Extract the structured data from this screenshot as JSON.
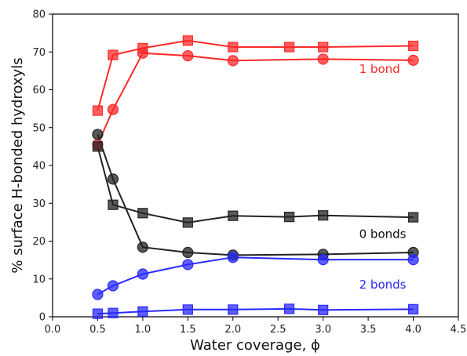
{
  "chart_data": {
    "type": "line",
    "xlabel": "Water coverage, ϕ",
    "ylabel": "% surface H-bonded hydroxyls",
    "xlim": [
      0,
      4.5
    ],
    "ylim": [
      0,
      80
    ],
    "xticks": [
      "0.0",
      "0.5",
      "1.0",
      "1.5",
      "2.0",
      "2.5",
      "3.0",
      "3.5",
      "4.0",
      "4.5"
    ],
    "yticks": [
      "0",
      "10",
      "20",
      "30",
      "40",
      "50",
      "60",
      "70",
      "80"
    ],
    "grid": false,
    "series": [
      {
        "group": "1 bond",
        "marker": "square",
        "color": "#ff2a2a",
        "points": [
          [
            0.5,
            54.5
          ],
          [
            0.67,
            69.2
          ],
          [
            1.0,
            71.0
          ],
          [
            1.5,
            73.0
          ],
          [
            2.0,
            71.3
          ],
          [
            2.625,
            71.3
          ],
          [
            3.0,
            71.3
          ],
          [
            4.0,
            71.6
          ]
        ]
      },
      {
        "group": "1 bond",
        "marker": "circle",
        "color": "#ff2a2a",
        "points": [
          [
            0.5,
            45.5
          ],
          [
            0.67,
            54.8
          ],
          [
            1.0,
            69.7
          ],
          [
            1.5,
            69.0
          ],
          [
            2.0,
            67.7
          ],
          [
            3.0,
            68.1
          ],
          [
            4.0,
            67.8
          ]
        ]
      },
      {
        "group": "0 bonds",
        "marker": "square",
        "color": "#222222",
        "points": [
          [
            0.5,
            45.0
          ],
          [
            0.67,
            29.6
          ],
          [
            1.0,
            27.4
          ],
          [
            1.5,
            24.9
          ],
          [
            2.0,
            26.7
          ],
          [
            2.625,
            26.4
          ],
          [
            3.0,
            26.8
          ],
          [
            4.0,
            26.3
          ]
        ]
      },
      {
        "group": "0 bonds",
        "marker": "circle",
        "color": "#222222",
        "points": [
          [
            0.5,
            48.2
          ],
          [
            0.67,
            36.4
          ],
          [
            1.0,
            18.4
          ],
          [
            1.5,
            17.0
          ],
          [
            2.0,
            16.3
          ],
          [
            3.0,
            16.5
          ],
          [
            4.0,
            17.0
          ]
        ]
      },
      {
        "group": "2 bonds",
        "marker": "circle",
        "color": "#2a2aff",
        "points": [
          [
            0.5,
            5.9
          ],
          [
            0.67,
            8.2
          ],
          [
            1.0,
            11.3
          ],
          [
            1.5,
            13.8
          ],
          [
            2.0,
            15.7
          ],
          [
            3.0,
            15.1
          ],
          [
            4.0,
            15.1
          ]
        ]
      },
      {
        "group": "2 bonds",
        "marker": "square",
        "color": "#2a2aff",
        "points": [
          [
            0.5,
            0.8
          ],
          [
            0.67,
            1.0
          ],
          [
            1.0,
            1.4
          ],
          [
            1.5,
            1.9
          ],
          [
            2.0,
            1.9
          ],
          [
            2.625,
            2.1
          ],
          [
            3.0,
            1.8
          ],
          [
            4.0,
            2.0
          ]
        ]
      }
    ],
    "annotations": [
      {
        "text": "1 bond",
        "color": "#ff2a2a",
        "x": 3.4,
        "y": 64.5
      },
      {
        "text": "0 bonds",
        "color": "#111111",
        "x": 3.4,
        "y": 20.8
      },
      {
        "text": "2 bonds",
        "color": "#2a2aff",
        "x": 3.4,
        "y": 7.5
      }
    ]
  }
}
